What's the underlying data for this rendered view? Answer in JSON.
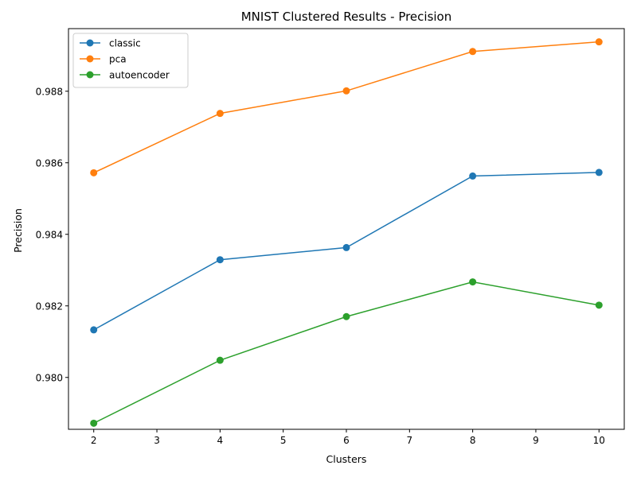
{
  "chart_data": {
    "type": "line",
    "title": "MNIST Clustered Results - Precision",
    "xlabel": "Clusters",
    "ylabel": "Precision",
    "x": [
      2,
      4,
      6,
      8,
      10
    ],
    "xlim": [
      1.6,
      10.4
    ],
    "ylim": [
      0.97855,
      0.98975
    ],
    "xticks": [
      2,
      3,
      4,
      5,
      6,
      7,
      8,
      9,
      10
    ],
    "xtick_labels": [
      "2",
      "3",
      "4",
      "5",
      "6",
      "7",
      "8",
      "9",
      "10"
    ],
    "yticks": [
      0.98,
      0.982,
      0.984,
      0.986,
      0.988
    ],
    "ytick_labels": [
      "0.980",
      "0.982",
      "0.984",
      "0.986",
      "0.988"
    ],
    "grid": false,
    "legend_position": "top-left",
    "series": [
      {
        "name": "classic",
        "color": "#1f77b4",
        "values": [
          0.98133,
          0.98329,
          0.98363,
          0.98563,
          0.98573
        ]
      },
      {
        "name": "pca",
        "color": "#ff7f0e",
        "values": [
          0.98572,
          0.98738,
          0.98801,
          0.98911,
          0.98938
        ]
      },
      {
        "name": "autoencoder",
        "color": "#2ca02c",
        "values": [
          0.97872,
          0.98048,
          0.9817,
          0.98267,
          0.98202
        ]
      }
    ]
  }
}
